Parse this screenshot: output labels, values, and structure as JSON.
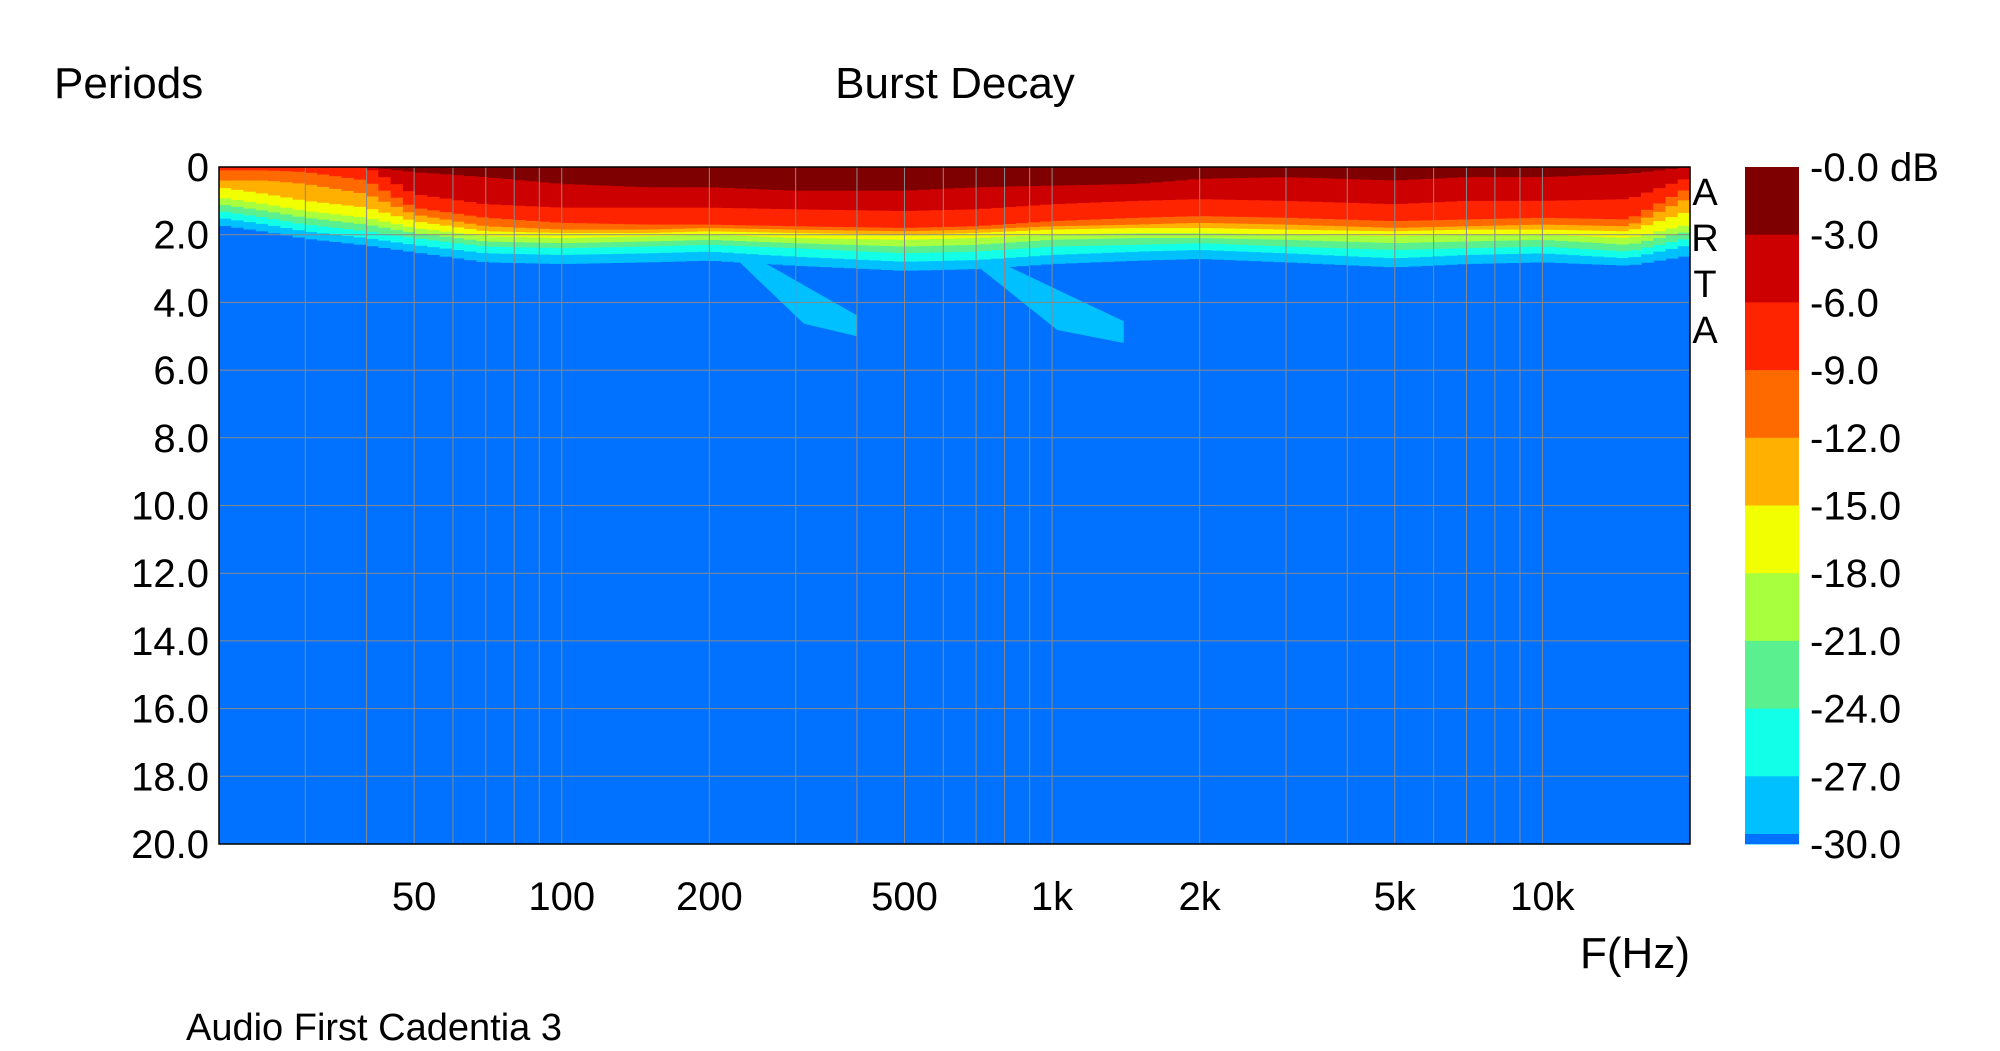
{
  "chart_data": {
    "type": "heatmap",
    "title": "Burst Decay",
    "ylabel": "Periods",
    "xlabel": "F(Hz)",
    "caption": "Audio First Cadentia 3",
    "watermark": "ARTA",
    "x_scale": "log",
    "xlim": [
      20,
      20000
    ],
    "ylim": [
      0,
      20
    ],
    "y_inverted": true,
    "grid": true,
    "x_ticks": [
      {
        "value": 50,
        "label": "50"
      },
      {
        "value": 100,
        "label": "100"
      },
      {
        "value": 200,
        "label": "200"
      },
      {
        "value": 500,
        "label": "500"
      },
      {
        "value": 1000,
        "label": "1k"
      },
      {
        "value": 2000,
        "label": "2k"
      },
      {
        "value": 5000,
        "label": "5k"
      },
      {
        "value": 10000,
        "label": "10k"
      }
    ],
    "y_ticks": [
      {
        "value": 0,
        "label": "0"
      },
      {
        "value": 2,
        "label": "2.0"
      },
      {
        "value": 4,
        "label": "4.0"
      },
      {
        "value": 6,
        "label": "6.0"
      },
      {
        "value": 8,
        "label": "8.0"
      },
      {
        "value": 10,
        "label": "10.0"
      },
      {
        "value": 12,
        "label": "12.0"
      },
      {
        "value": 14,
        "label": "14.0"
      },
      {
        "value": 16,
        "label": "16.0"
      },
      {
        "value": 18,
        "label": "18.0"
      },
      {
        "value": 20,
        "label": "20.0"
      }
    ],
    "colorbar": {
      "placement": "right",
      "unit": "dB",
      "levels": [
        {
          "label": "-0.0 dB",
          "color": "#7f0000"
        },
        {
          "label": "-3.0",
          "color": "#cc0000"
        },
        {
          "label": "-6.0",
          "color": "#ff2400"
        },
        {
          "label": "-9.0",
          "color": "#ff6a00"
        },
        {
          "label": "-12.0",
          "color": "#ffb000"
        },
        {
          "label": "-15.0",
          "color": "#f2ff00"
        },
        {
          "label": "-18.0",
          "color": "#a8ff3e"
        },
        {
          "label": "-21.0",
          "color": "#5af08f"
        },
        {
          "label": "-24.0",
          "color": "#12ffe8"
        },
        {
          "label": "-27.0",
          "color": "#00c0ff"
        },
        {
          "label": "-30.0",
          "color": "#0072ff"
        }
      ]
    },
    "band_colors": [
      "#7f0000",
      "#cc0000",
      "#ff2400",
      "#ff6a00",
      "#ffb000",
      "#f2ff00",
      "#a8ff3e",
      "#5af08f",
      "#12ffe8",
      "#00c0ff"
    ],
    "floor_color": "#0072ff",
    "decay_profile": {
      "description_unit": "periods to reach each level",
      "frequencies": [
        20,
        25,
        30,
        40,
        50,
        70,
        100,
        150,
        200,
        300,
        500,
        700,
        1000,
        1500,
        2000,
        3000,
        5000,
        7000,
        10000,
        15000,
        20000
      ],
      "levels_periods": [
        [
          0.0,
          0.0,
          0.0,
          0.0,
          0.15,
          0.3,
          0.5,
          0.6,
          0.6,
          0.7,
          0.7,
          0.6,
          0.55,
          0.5,
          0.35,
          0.3,
          0.4,
          0.3,
          0.3,
          0.2,
          0.0
        ],
        [
          0.0,
          0.0,
          0.0,
          0.0,
          0.8,
          1.1,
          1.2,
          1.2,
          1.2,
          1.25,
          1.3,
          1.25,
          1.1,
          1.0,
          0.95,
          1.0,
          1.1,
          1.0,
          1.0,
          0.95,
          0.3
        ],
        [
          0.1,
          0.1,
          0.15,
          0.4,
          1.2,
          1.5,
          1.65,
          1.7,
          1.7,
          1.75,
          1.8,
          1.75,
          1.6,
          1.5,
          1.45,
          1.5,
          1.6,
          1.55,
          1.5,
          1.55,
          0.6
        ],
        [
          0.4,
          0.4,
          0.5,
          0.8,
          1.4,
          1.75,
          1.85,
          1.85,
          1.8,
          1.85,
          1.9,
          1.85,
          1.75,
          1.7,
          1.65,
          1.7,
          1.8,
          1.75,
          1.7,
          1.75,
          0.9
        ],
        [
          0.6,
          0.8,
          1.0,
          1.2,
          1.6,
          1.9,
          1.95,
          1.95,
          1.9,
          1.95,
          2.0,
          1.95,
          1.85,
          1.8,
          1.8,
          1.85,
          1.9,
          1.85,
          1.85,
          1.9,
          1.3
        ],
        [
          0.9,
          1.1,
          1.3,
          1.5,
          1.8,
          2.05,
          2.1,
          2.05,
          2.0,
          2.1,
          2.15,
          2.1,
          2.0,
          1.95,
          1.95,
          2.0,
          2.05,
          2.0,
          2.0,
          2.1,
          1.7
        ],
        [
          1.1,
          1.3,
          1.5,
          1.7,
          1.95,
          2.2,
          2.25,
          2.2,
          2.15,
          2.25,
          2.35,
          2.3,
          2.15,
          2.1,
          2.1,
          2.15,
          2.25,
          2.2,
          2.15,
          2.3,
          1.9
        ],
        [
          1.3,
          1.5,
          1.7,
          1.9,
          2.1,
          2.35,
          2.4,
          2.35,
          2.3,
          2.4,
          2.55,
          2.5,
          2.35,
          2.3,
          2.25,
          2.35,
          2.45,
          2.4,
          2.35,
          2.5,
          2.1
        ],
        [
          1.5,
          1.7,
          1.9,
          2.1,
          2.3,
          2.55,
          2.6,
          2.55,
          2.5,
          2.65,
          2.8,
          2.75,
          2.6,
          2.5,
          2.45,
          2.55,
          2.7,
          2.6,
          2.55,
          2.7,
          2.3
        ],
        [
          1.7,
          1.9,
          2.1,
          2.3,
          2.5,
          2.8,
          2.85,
          2.8,
          2.75,
          2.9,
          3.05,
          3.0,
          2.85,
          2.75,
          2.7,
          2.8,
          2.95,
          2.85,
          2.8,
          2.9,
          2.6
        ]
      ]
    },
    "tails": [
      {
        "from_hz": 230,
        "to_hz": 400,
        "from_periods": 2.8,
        "to_periods": 5.0
      },
      {
        "from_hz": 700,
        "to_hz": 1400,
        "from_periods": 2.9,
        "to_periods": 5.2
      }
    ]
  }
}
